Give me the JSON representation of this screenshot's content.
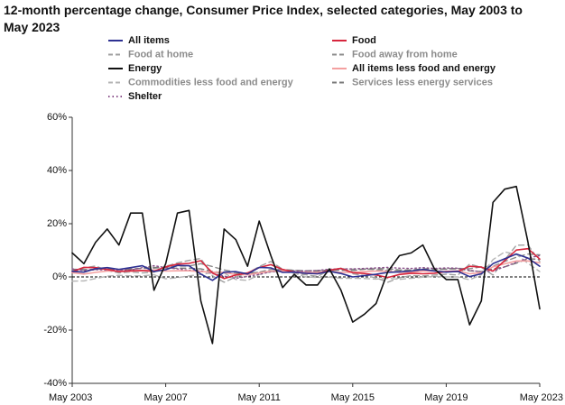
{
  "chart_data": {
    "type": "line",
    "title": "12-month percentage change, Consumer Price Index, selected categories, May 2003 to May 2023",
    "x": [
      "May 2003",
      "Nov 2003",
      "May 2004",
      "Nov 2004",
      "May 2005",
      "Nov 2005",
      "May 2006",
      "Nov 2006",
      "May 2007",
      "Nov 2007",
      "May 2008",
      "Nov 2008",
      "May 2009",
      "Nov 2009",
      "May 2010",
      "Nov 2010",
      "May 2011",
      "Nov 2011",
      "May 2012",
      "Nov 2012",
      "May 2013",
      "Nov 2013",
      "May 2014",
      "Nov 2014",
      "May 2015",
      "Nov 2015",
      "May 2016",
      "Nov 2016",
      "May 2017",
      "Nov 2017",
      "May 2018",
      "Nov 2018",
      "May 2019",
      "Nov 2019",
      "May 2020",
      "Nov 2020",
      "May 2021",
      "Nov 2021",
      "May 2022",
      "Nov 2022",
      "May 2023"
    ],
    "xticks": [
      "May 2003",
      "May 2007",
      "May 2011",
      "May 2015",
      "May 2019",
      "May 2023"
    ],
    "ylim": [
      -40,
      60
    ],
    "yticks": [
      {
        "value": -40,
        "label": "-40%"
      },
      {
        "value": -20,
        "label": "-20%"
      },
      {
        "value": 0,
        "label": "0%"
      },
      {
        "value": 20,
        "label": "20%"
      },
      {
        "value": 40,
        "label": "40%"
      },
      {
        "value": 60,
        "label": "60%"
      }
    ],
    "series": [
      {
        "name": "All items",
        "color": "#2e3192",
        "dash": "solid",
        "values": [
          2.1,
          1.8,
          3.1,
          3.5,
          2.8,
          3.5,
          4.2,
          2.0,
          2.7,
          4.3,
          4.2,
          1.1,
          -1.3,
          1.8,
          2.0,
          1.1,
          3.6,
          3.4,
          1.7,
          1.8,
          1.4,
          1.2,
          2.1,
          1.3,
          0.0,
          0.5,
          1.0,
          1.7,
          1.9,
          2.2,
          2.8,
          2.2,
          1.8,
          2.1,
          0.1,
          1.2,
          5.0,
          6.8,
          8.6,
          7.1,
          4.0
        ]
      },
      {
        "name": "Food",
        "color": "#d7263d",
        "dash": "solid",
        "values": [
          2.0,
          3.6,
          3.5,
          2.8,
          2.0,
          2.3,
          2.4,
          2.1,
          3.8,
          4.8,
          5.1,
          6.1,
          1.5,
          -0.6,
          0.7,
          1.5,
          3.5,
          4.6,
          2.8,
          1.8,
          1.4,
          1.2,
          2.5,
          3.2,
          1.6,
          1.3,
          0.7,
          -0.2,
          0.9,
          1.4,
          1.2,
          1.4,
          2.0,
          2.0,
          4.0,
          3.7,
          2.2,
          6.1,
          10.1,
          10.6,
          6.7
        ]
      },
      {
        "name": "Food at home",
        "color": "#a0a0a0",
        "dash": "dashed",
        "values": [
          1.6,
          3.4,
          4.1,
          2.4,
          1.5,
          1.9,
          1.5,
          1.8,
          4.0,
          5.3,
          6.2,
          6.9,
          0.4,
          -2.0,
          0.0,
          1.4,
          3.9,
          5.8,
          2.9,
          1.4,
          0.8,
          0.2,
          2.5,
          3.3,
          1.2,
          0.5,
          -0.3,
          -2.0,
          -0.3,
          0.5,
          0.4,
          0.7,
          1.0,
          0.7,
          4.8,
          3.6,
          0.7,
          6.4,
          11.9,
          12.0,
          5.8
        ]
      },
      {
        "name": "Food away from home",
        "color": "#8c8c8c",
        "dash": "dashed",
        "values": [
          2.4,
          2.6,
          2.8,
          3.1,
          2.8,
          3.1,
          3.2,
          3.3,
          3.7,
          4.1,
          4.1,
          5.0,
          3.9,
          2.6,
          1.8,
          1.3,
          1.8,
          2.8,
          2.8,
          2.5,
          2.2,
          2.1,
          2.2,
          3.0,
          2.9,
          2.9,
          2.7,
          2.4,
          2.3,
          2.3,
          2.5,
          2.6,
          3.1,
          3.2,
          3.1,
          3.8,
          4.0,
          5.8,
          7.4,
          8.6,
          8.3
        ]
      },
      {
        "name": "Energy",
        "color": "#111111",
        "dash": "solid",
        "values": [
          9,
          5,
          13,
          18,
          12,
          24,
          24,
          -5,
          5,
          24,
          25,
          -9,
          -25,
          18,
          14,
          4,
          21,
          8,
          -4,
          1,
          -3,
          -3,
          3,
          -5,
          -17,
          -14,
          -10,
          2,
          8,
          9,
          12,
          3,
          -1,
          -1,
          -18,
          -9,
          28,
          33,
          34,
          13,
          -12
        ]
      },
      {
        "name": "All items less food and energy",
        "color": "#f4a0a0",
        "dash": "solid",
        "values": [
          1.6,
          1.1,
          1.7,
          2.2,
          2.2,
          2.1,
          2.4,
          2.6,
          2.2,
          2.3,
          2.3,
          2.0,
          1.8,
          1.7,
          0.9,
          0.8,
          1.5,
          2.2,
          2.3,
          1.9,
          1.7,
          1.7,
          2.0,
          1.7,
          1.7,
          2.0,
          2.2,
          2.1,
          1.7,
          1.7,
          2.2,
          2.2,
          2.0,
          2.3,
          1.2,
          1.6,
          3.8,
          4.9,
          6.0,
          6.0,
          5.3
        ]
      },
      {
        "name": "Commodities less food and energy",
        "color": "#b4b4b4",
        "dash": "dashed",
        "values": [
          -1.6,
          -1.5,
          -0.6,
          0.3,
          0.6,
          0.4,
          0.4,
          0.8,
          -0.7,
          -0.3,
          0.4,
          0.9,
          1.6,
          1.5,
          -1.0,
          -1.3,
          0.8,
          2.0,
          2.0,
          1.4,
          0.0,
          -0.2,
          -0.1,
          -0.5,
          -0.5,
          -0.6,
          -0.8,
          -0.5,
          -0.9,
          -0.5,
          -0.1,
          0.2,
          0.0,
          0.0,
          -1.1,
          0.8,
          6.5,
          9.4,
          8.5,
          5.1,
          2.0
        ]
      },
      {
        "name": "Services less energy services",
        "color": "#787878",
        "dash": "dashed",
        "values": [
          2.9,
          2.7,
          2.9,
          3.0,
          2.7,
          2.8,
          3.3,
          3.6,
          3.4,
          3.3,
          3.3,
          3.0,
          2.0,
          1.6,
          1.3,
          1.4,
          1.7,
          2.0,
          2.5,
          2.4,
          2.3,
          2.4,
          2.5,
          2.5,
          2.4,
          2.9,
          3.1,
          3.1,
          2.6,
          2.6,
          3.0,
          3.0,
          2.9,
          3.1,
          2.3,
          2.0,
          3.0,
          3.8,
          5.2,
          6.8,
          6.6
        ]
      },
      {
        "name": "Shelter",
        "color": "#8a4f8a",
        "dash": "dotted",
        "values": [
          3.0,
          2.4,
          2.7,
          2.6,
          2.6,
          2.6,
          3.5,
          4.2,
          3.5,
          3.0,
          2.5,
          2.3,
          1.3,
          0.3,
          -0.5,
          0.2,
          1.0,
          1.9,
          2.2,
          2.2,
          2.2,
          2.4,
          2.9,
          3.0,
          3.0,
          3.2,
          3.4,
          3.6,
          3.3,
          3.2,
          3.5,
          3.2,
          3.4,
          3.3,
          2.5,
          1.9,
          2.2,
          3.8,
          5.5,
          7.1,
          8.0
        ]
      }
    ]
  }
}
